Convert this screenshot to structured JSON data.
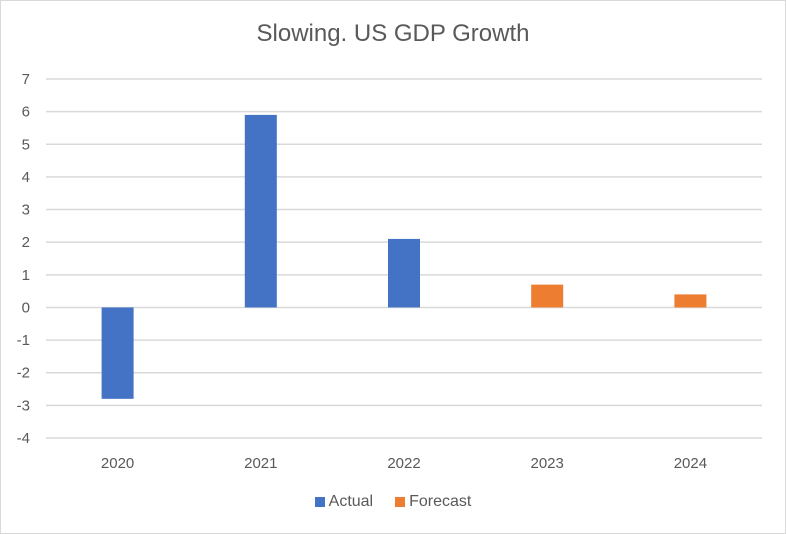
{
  "chart_data": {
    "type": "bar",
    "title": "Slowing. US GDP Growth",
    "xlabel": "",
    "ylabel": "",
    "categories": [
      "2020",
      "2021",
      "2022",
      "2023",
      "2024"
    ],
    "series": [
      {
        "name": "Actual",
        "color": "#4472c4",
        "values": [
          -2.8,
          5.9,
          2.1,
          null,
          null
        ]
      },
      {
        "name": "Forecast",
        "color": "#ed7d31",
        "values": [
          null,
          null,
          null,
          0.7,
          0.4
        ]
      }
    ],
    "ylim": [
      -4,
      7
    ],
    "yticks": [
      "7",
      "6",
      "5",
      "4",
      "3",
      "2",
      "1",
      "0",
      "-1",
      "-2",
      "-3",
      "-4"
    ],
    "grid": true,
    "legend_position": "bottom"
  }
}
